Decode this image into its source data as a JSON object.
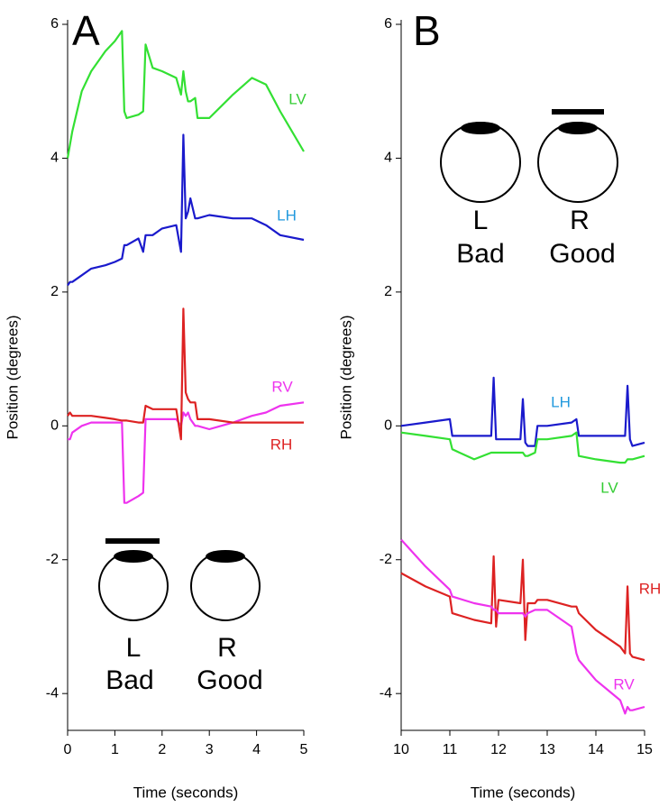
{
  "chart_data": [
    {
      "type": "line",
      "panel_label": "A",
      "xlabel": "Time (seconds)",
      "ylabel": "Position (degrees)",
      "xlim": [
        0,
        5
      ],
      "xticks": [
        0,
        1,
        2,
        3,
        4,
        5
      ],
      "ylim": [
        -4.55,
        6
      ],
      "yticks": [
        -4,
        -2,
        0,
        2,
        4,
        6
      ],
      "x": [
        0,
        0.05,
        0.1,
        0.3,
        0.5,
        0.8,
        1.0,
        1.15,
        1.2,
        1.25,
        1.5,
        1.6,
        1.65,
        1.8,
        2.0,
        2.3,
        2.4,
        2.45,
        2.5,
        2.55,
        2.6,
        2.7,
        2.75,
        3.0,
        3.5,
        3.9,
        4.2,
        4.5,
        5.0
      ],
      "series": [
        {
          "name": "LV",
          "color": "#33e033",
          "label_color": "#33cc33",
          "values": [
            4.0,
            4.2,
            4.4,
            5.0,
            5.3,
            5.6,
            5.75,
            5.9,
            4.7,
            4.6,
            4.65,
            4.7,
            5.7,
            5.35,
            5.3,
            5.2,
            4.95,
            5.3,
            5.0,
            4.85,
            4.85,
            4.9,
            4.6,
            4.6,
            4.95,
            5.2,
            5.1,
            4.7,
            4.1
          ]
        },
        {
          "name": "LH",
          "color": "#1a1acc",
          "label_color": "#2299dd",
          "values": [
            2.1,
            2.15,
            2.15,
            2.25,
            2.35,
            2.4,
            2.45,
            2.5,
            2.7,
            2.7,
            2.8,
            2.6,
            2.85,
            2.85,
            2.95,
            3.0,
            2.6,
            4.35,
            3.1,
            3.2,
            3.4,
            3.1,
            3.1,
            3.15,
            3.1,
            3.1,
            3.0,
            2.85,
            2.78
          ]
        },
        {
          "name": "RV",
          "color": "#ee33ee",
          "label_color": "#ee33ee",
          "values": [
            -0.2,
            -0.2,
            -0.1,
            0.0,
            0.05,
            0.05,
            0.05,
            0.05,
            -1.15,
            -1.15,
            -1.05,
            -1.0,
            0.1,
            0.1,
            0.1,
            0.1,
            0.0,
            0.2,
            0.15,
            0.2,
            0.1,
            0.0,
            0.0,
            -0.05,
            0.05,
            0.15,
            0.2,
            0.3,
            0.35
          ]
        },
        {
          "name": "RH",
          "color": "#dd2222",
          "label_color": "#dd2222",
          "values": [
            0.15,
            0.2,
            0.15,
            0.15,
            0.15,
            0.12,
            0.1,
            0.08,
            0.08,
            0.08,
            0.05,
            0.05,
            0.3,
            0.25,
            0.25,
            0.25,
            -0.2,
            1.75,
            0.5,
            0.4,
            0.35,
            0.35,
            0.1,
            0.1,
            0.05,
            0.05,
            0.05,
            0.05,
            0.05
          ]
        }
      ],
      "eyes": [
        {
          "label": "L",
          "status": "Bad"
        },
        {
          "label": "R",
          "status": "Good"
        }
      ]
    },
    {
      "type": "line",
      "panel_label": "B",
      "xlabel": "Time (seconds)",
      "ylabel": "Position (degrees)",
      "xlim": [
        10,
        15
      ],
      "xticks": [
        10,
        11,
        12,
        13,
        14,
        15
      ],
      "ylim": [
        -4.55,
        6
      ],
      "yticks": [
        -4,
        -2,
        0,
        2,
        4,
        6
      ],
      "x": [
        10,
        10.5,
        11,
        11.05,
        11.5,
        11.85,
        11.9,
        11.95,
        12.0,
        12.45,
        12.5,
        12.55,
        12.6,
        12.75,
        12.8,
        13.0,
        13.5,
        13.6,
        13.65,
        14.0,
        14.5,
        14.6,
        14.65,
        14.7,
        14.75,
        15.0
      ],
      "series": [
        {
          "name": "LH",
          "color": "#1a1acc",
          "label_color": "#2299dd",
          "values": [
            0.0,
            0.05,
            0.1,
            -0.15,
            -0.15,
            -0.15,
            0.72,
            -0.2,
            -0.2,
            -0.2,
            0.4,
            -0.25,
            -0.3,
            -0.3,
            0.0,
            0.0,
            0.05,
            0.1,
            -0.15,
            -0.15,
            -0.15,
            -0.15,
            0.6,
            -0.2,
            -0.3,
            -0.25
          ]
        },
        {
          "name": "LV",
          "color": "#33e033",
          "label_color": "#33cc33",
          "values": [
            -0.1,
            -0.15,
            -0.2,
            -0.35,
            -0.5,
            -0.4,
            -0.4,
            -0.4,
            -0.4,
            -0.4,
            -0.4,
            -0.45,
            -0.45,
            -0.4,
            -0.2,
            -0.2,
            -0.15,
            -0.1,
            -0.45,
            -0.5,
            -0.55,
            -0.55,
            -0.5,
            -0.5,
            -0.5,
            -0.45
          ]
        },
        {
          "name": "RH",
          "color": "#dd2222",
          "label_color": "#dd2222",
          "values": [
            -2.2,
            -2.4,
            -2.55,
            -2.8,
            -2.9,
            -2.95,
            -1.95,
            -3.0,
            -2.6,
            -2.65,
            -2.0,
            -3.2,
            -2.65,
            -2.65,
            -2.6,
            -2.6,
            -2.7,
            -2.7,
            -2.8,
            -3.05,
            -3.3,
            -3.4,
            -2.4,
            -3.4,
            -3.45,
            -3.5
          ]
        },
        {
          "name": "RV",
          "color": "#ee33ee",
          "label_color": "#ee33ee",
          "values": [
            -1.7,
            -2.1,
            -2.45,
            -2.55,
            -2.65,
            -2.7,
            -2.75,
            -2.75,
            -2.8,
            -2.8,
            -2.8,
            -2.85,
            -2.8,
            -2.75,
            -2.75,
            -2.75,
            -3.0,
            -3.4,
            -3.5,
            -3.8,
            -4.1,
            -4.3,
            -4.2,
            -4.25,
            -4.25,
            -4.2
          ]
        }
      ],
      "eyes": [
        {
          "label": "L",
          "status": "Bad"
        },
        {
          "label": "R",
          "status": "Good"
        }
      ]
    }
  ]
}
